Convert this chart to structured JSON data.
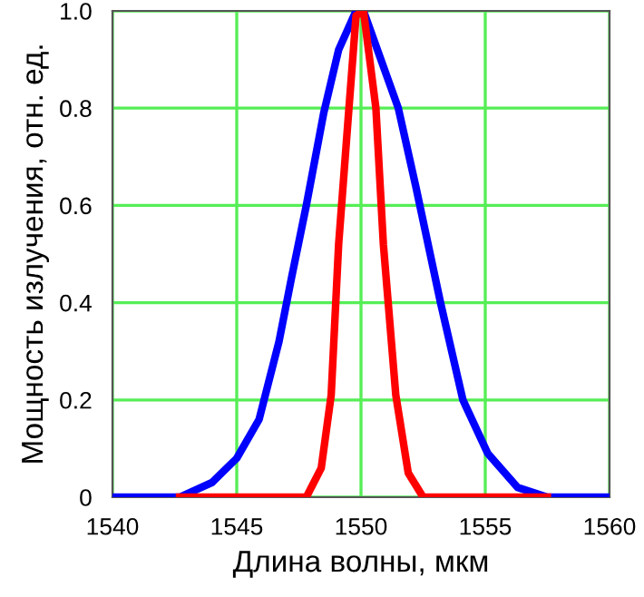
{
  "chart_data": {
    "type": "line",
    "xlabel": "Длина волны, мкм",
    "ylabel": "Мощность излучения, отн. ед.",
    "xlim": [
      1540,
      1560
    ],
    "xticks": [
      1540,
      1545,
      1550,
      1555,
      1560
    ],
    "ylim": [
      0,
      1.0
    ],
    "yticks": [
      0,
      0.2,
      0.4,
      0.6,
      0.8,
      {
        "value": 1.0,
        "label": "1.0"
      }
    ],
    "grid": true,
    "legend": false,
    "series": [
      {
        "color": "#0000ff",
        "x": [
          1540,
          1542.7,
          1544.0,
          1545.0,
          1545.9,
          1546.7,
          1547.2,
          1547.8,
          1548.5,
          1549.1,
          1549.8,
          1550.1,
          1551.5,
          1552.2,
          1553.2,
          1554.1,
          1555.1,
          1556.3,
          1557.5,
          1560
        ],
        "values": [
          0,
          0,
          0.03,
          0.08,
          0.16,
          0.32,
          0.45,
          0.6,
          0.79,
          0.92,
          1.0,
          1.0,
          0.8,
          0.64,
          0.4,
          0.2,
          0.09,
          0.02,
          0,
          0
        ]
      },
      {
        "color": "#ff0000",
        "x": [
          1542.7,
          1547.8,
          1548.4,
          1548.8,
          1549.1,
          1549.5,
          1549.8,
          1550.1,
          1550.6,
          1550.9,
          1551.4,
          1551.9,
          1552.5,
          1557.5
        ],
        "values": [
          0,
          0,
          0.06,
          0.21,
          0.52,
          0.79,
          0.99,
          1.0,
          0.8,
          0.52,
          0.21,
          0.05,
          0,
          0
        ]
      }
    ]
  }
}
